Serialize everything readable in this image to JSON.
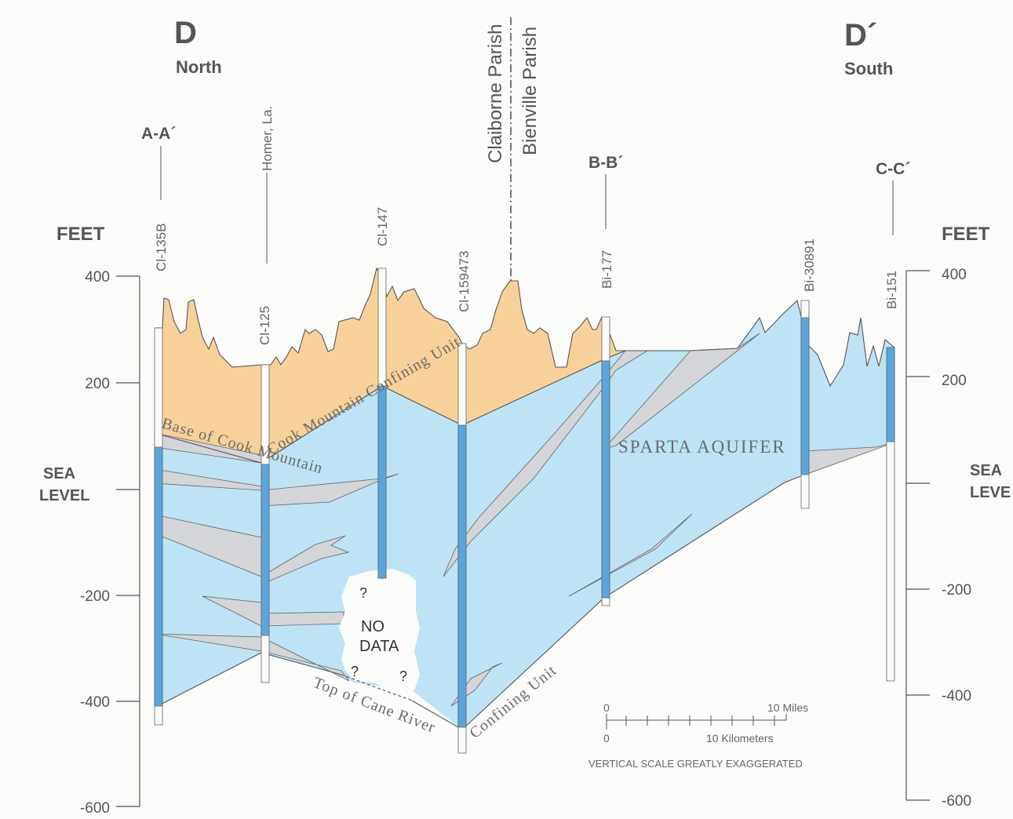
{
  "section": {
    "left_letter": "D",
    "left_direction": "North",
    "right_letter": "D´",
    "right_direction": "South"
  },
  "axis": {
    "left_title": "FEET",
    "right_title": "FEET",
    "sea_level_word1": "SEA",
    "sea_level_word2": "LEVEL",
    "sea_level_right_word1": "SEA",
    "sea_level_right_word2": "LEVE",
    "left_ticks": [
      "400",
      "200",
      "-200",
      "-400",
      "-600"
    ],
    "right_ticks": [
      "400",
      "200",
      "-200",
      "-400",
      "-600"
    ]
  },
  "cross_sections": {
    "aa": "A-A´",
    "bb": "B-B´",
    "cc": "C-C´"
  },
  "parishes": {
    "claiborne": "Claiborne Parish",
    "bienville": "Bienville Parish"
  },
  "wells": {
    "cl135b": "Cl-135B",
    "homer": "Homer, La.",
    "cl125": "Cl-125",
    "cl147": "Cl-147",
    "cl159473": "Cl-159473",
    "bi177": "Bi-177",
    "bi30891": "Bi-30891",
    "bi151": "Bi-151"
  },
  "units": {
    "cook_mountain_upper": "Cook Mountain Confining Unit",
    "cook_mountain_base": "Base of Cook Mountain",
    "sparta": "SPARTA AQUIFER",
    "cane_river_top": "Top of Cane River",
    "cane_river_confining": "Confining Unit",
    "no_data_1": "NO",
    "no_data_2": "DATA",
    "question": "?"
  },
  "scale": {
    "miles_zero": "0",
    "miles_label": "10 Miles",
    "km_zero": "0",
    "km_label": "10 Kilometers",
    "note": "VERTICAL SCALE GREATLY EXAGGERATED"
  },
  "colors": {
    "cook_mountain": "#f8d19a",
    "sparta": "#bde3f5",
    "clay": "#d3d5d9",
    "screen": "#5aa6dc",
    "line": "#555555",
    "text": "#555555"
  }
}
